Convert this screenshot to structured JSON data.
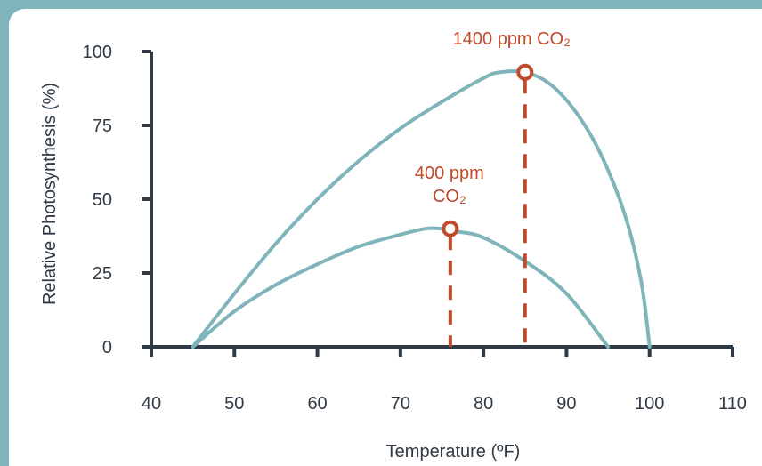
{
  "colors": {
    "axis": "#2f3a45",
    "curve": "#7fb5ba",
    "annotation": "#c04a2a",
    "background": "#ffffff",
    "frame": "#7fb5ba"
  },
  "chart_data": {
    "type": "line",
    "title": "",
    "xlabel": "Temperature (ºF)",
    "ylabel": "Relative Photosynthesis (%)",
    "xlim": [
      40,
      110
    ],
    "ylim": [
      0,
      100
    ],
    "xticks": [
      40,
      50,
      60,
      70,
      80,
      90,
      100,
      110
    ],
    "yticks": [
      0,
      25,
      50,
      75,
      100
    ],
    "grid": false,
    "legend": "none",
    "series": [
      {
        "name": "1400 ppm CO₂",
        "x": [
          45,
          50,
          55,
          60,
          65,
          70,
          75,
          80,
          82,
          85,
          88,
          91,
          94,
          97,
          99,
          100
        ],
        "y": [
          0,
          18,
          35,
          50,
          63,
          74,
          83,
          91,
          93,
          93,
          89,
          80,
          66,
          45,
          22,
          0
        ]
      },
      {
        "name": "400 ppm CO₂",
        "x": [
          45,
          50,
          55,
          60,
          65,
          70,
          73,
          75,
          77,
          80,
          85,
          90,
          95
        ],
        "y": [
          0,
          12,
          21,
          28,
          34,
          38,
          40,
          40,
          39,
          37,
          29,
          18,
          0
        ]
      }
    ],
    "annotations": [
      {
        "lines": [
          "1400 ppm CO₂"
        ],
        "x": 85,
        "y": 93
      },
      {
        "lines": [
          "400 ppm",
          "CO₂"
        ],
        "x": 76,
        "y": 40
      }
    ]
  }
}
